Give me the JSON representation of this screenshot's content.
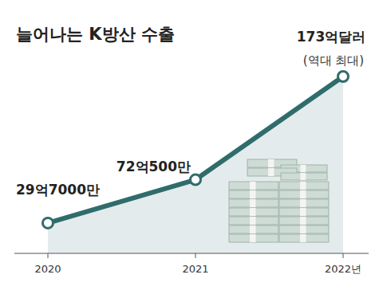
{
  "chart_data": {
    "type": "area",
    "title": "늘어나는 K방산 수출",
    "categories": [
      "2020",
      "2021",
      "2022년"
    ],
    "values": [
      29.7,
      72.05,
      173
    ],
    "value_labels": [
      "29억7000만",
      "72억500만",
      "173억달러"
    ],
    "annotation": "(역대 최대)",
    "color": "#2f6d6c",
    "marker": "circle",
    "data_labels": true,
    "tick_labels": "x",
    "ylim": [
      0,
      173
    ]
  }
}
